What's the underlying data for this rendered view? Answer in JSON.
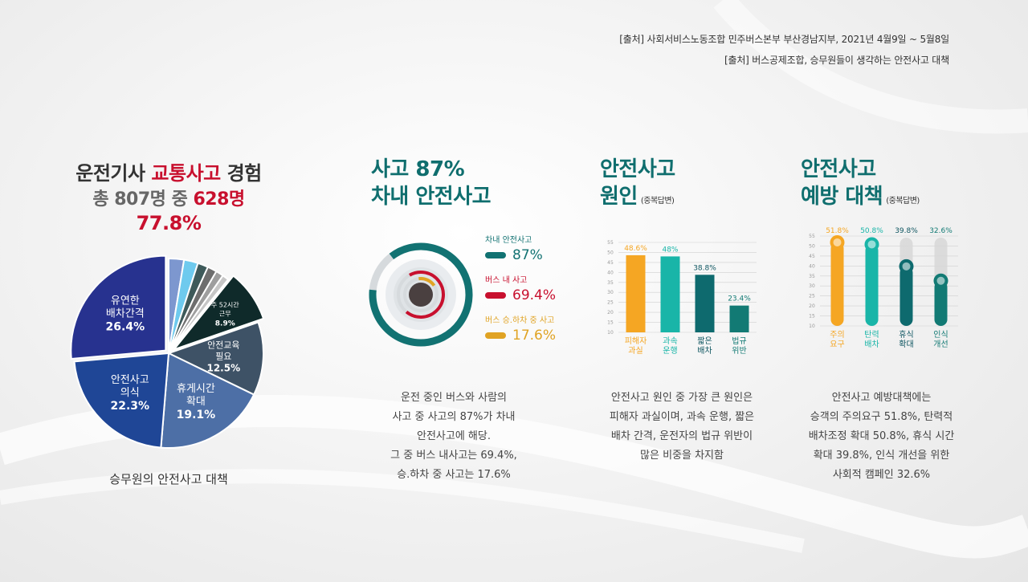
{
  "sources": [
    "[출처] 사회서비스노동조합 민주버스본부 부산경남지부, 2021년 4월9일 ~ 5월8일",
    "[출처]  버스공제조합, 승무원들이 생각하는 안전사고 대책"
  ],
  "section1": {
    "title_pre": "운전기사 ",
    "title_red": "교통사고",
    "title_post": " 경험",
    "line2_pre": "총 807명 중 ",
    "line2_red": "628명",
    "line3": "77.8%",
    "caption": "승무원의 안전사고 대책"
  },
  "section2": {
    "title_line1": "사고 87%",
    "title_line2": "차내 안전사고",
    "desc": [
      "운전 중인 버스와 사람의",
      "사고 중 사고의 87%가 차내",
      "안전사고에 해당.",
      "그 중 버스 내사고는 69.4%,",
      "승.하차 중 사고는 17.6%"
    ]
  },
  "section3": {
    "title_line1": "안전사고",
    "title_line2": "원인",
    "note": "(중복답변)",
    "desc": [
      "안전사고 원인 중 가장 큰 원인은",
      "피해자 과실이며, 과속 운행, 짧은",
      "배차 간격, 운전자의 법규 위반이",
      "많은 비중을 차지함"
    ]
  },
  "section4": {
    "title_line1": "안전사고",
    "title_line2": "예방 대책",
    "note": "(중복답변)",
    "desc": [
      "안전사고 예방대책에는",
      "승객의 주의요구 51.8%, 탄력적",
      "배차조정 확대 50.8%, 휴식 시간",
      "확대 39.8%, 인식 개선을 위한",
      "사회적 캠페인 32.6%"
    ]
  },
  "chart_data": [
    {
      "type": "pie",
      "slices": [
        {
          "label_lines": [
            "유연한",
            "배차간격"
          ],
          "value_label": "26.4%",
          "value": 26.4,
          "color": "#27328f"
        },
        {
          "label_lines": [
            "안전사고",
            "의식"
          ],
          "value_label": "22.3%",
          "value": 22.3,
          "color": "#1f4696"
        },
        {
          "label_lines": [
            "휴게시간",
            "확대"
          ],
          "value_label": "19.1%",
          "value": 19.1,
          "color": "#4d6fa6"
        },
        {
          "label_lines": [
            "안전교육",
            "필요"
          ],
          "value_label": "12.5%",
          "value": 12.5,
          "color": "#3e5266"
        },
        {
          "label_lines": [
            "주 52시간",
            "근무"
          ],
          "value_label": "8.9%",
          "value": 8.9,
          "color": "#0f2a2a"
        },
        {
          "label_lines": [],
          "value_label": "",
          "value": 2.6,
          "color": "#7d97cf"
        },
        {
          "label_lines": [],
          "value_label": "",
          "value": 2.4,
          "color": "#6ecaee"
        },
        {
          "label_lines": [],
          "value_label": "",
          "value": 1.8,
          "color": "#3e5a5a"
        },
        {
          "label_lines": [],
          "value_label": "",
          "value": 1.6,
          "color": "#6e6e6e"
        },
        {
          "label_lines": [],
          "value_label": "",
          "value": 1.3,
          "color": "#9e9e9e"
        },
        {
          "label_lines": [],
          "value_label": "",
          "value": 1.1,
          "color": "#c6c6c6"
        }
      ]
    },
    {
      "type": "donut",
      "series": [
        {
          "name": "차내 안전사고",
          "value": 87,
          "value_label": "87%",
          "color": "#127272"
        },
        {
          "name": "버스 내 사고",
          "value": 69.4,
          "value_label": "69.4%",
          "color": "#c8102e"
        },
        {
          "name": "버스 승.하차 중 사고",
          "value": 17.6,
          "value_label": "17.6%",
          "color": "#e0a323"
        }
      ]
    },
    {
      "type": "bar",
      "ylim": [
        10,
        55
      ],
      "yticks": [
        10,
        15,
        20,
        25,
        30,
        35,
        40,
        45,
        50,
        55
      ],
      "categories": [
        [
          "피해자",
          "과실"
        ],
        [
          "과속",
          "운행"
        ],
        [
          "짧은",
          "배차"
        ],
        [
          "법규",
          "위반"
        ]
      ],
      "values": [
        48.6,
        48,
        38.8,
        23.4
      ],
      "value_labels": [
        "48.6%",
        "48%",
        "38.8%",
        "23.4%"
      ],
      "colors": [
        "#f5a623",
        "#19b5a8",
        "#0e6a6e",
        "#127a74"
      ],
      "label_colors": [
        "#f5a623",
        "#19b5a8",
        "#0e5560",
        "#127a74"
      ]
    },
    {
      "type": "bar",
      "style": "lollipop",
      "ylim": [
        10,
        55
      ],
      "yticks": [
        10,
        15,
        20,
        25,
        30,
        35,
        40,
        45,
        50,
        55
      ],
      "categories": [
        [
          "주의",
          "요구"
        ],
        [
          "탄력",
          "배차"
        ],
        [
          "휴식",
          "확대"
        ],
        [
          "인식",
          "개선"
        ]
      ],
      "values": [
        51.8,
        50.8,
        39.8,
        32.6
      ],
      "value_labels": [
        "51.8%",
        "50.8%",
        "39.8%",
        "32.6%"
      ],
      "colors": [
        "#f5a623",
        "#19b5a8",
        "#0e6a6e",
        "#127a74"
      ],
      "label_colors": [
        "#f5a623",
        "#19b5a8",
        "#0e5560",
        "#127a74"
      ]
    }
  ]
}
